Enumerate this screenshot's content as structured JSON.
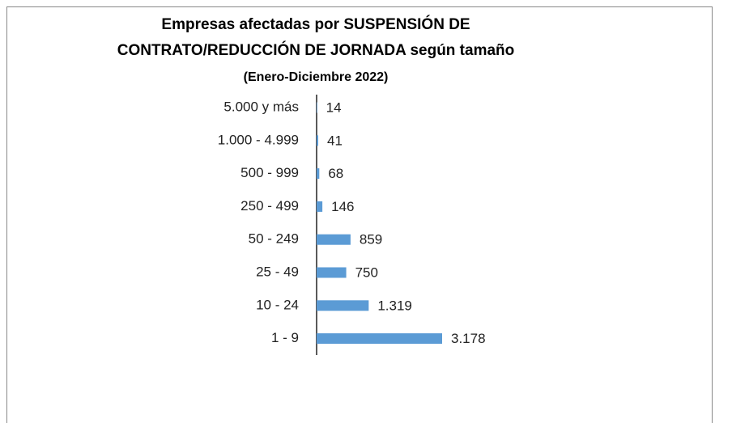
{
  "chart_data": {
    "type": "bar",
    "orientation": "horizontal",
    "title": [
      "Empresas afectadas por SUSPENSIÓN DE",
      "CONTRATO/REDUCCIÓN DE JORNADA según tamaño"
    ],
    "subtitle": "(Enero-Diciembre 2022)",
    "categories": [
      "5.000 y más",
      "1.000 - 4.999",
      "500 - 999",
      "250 - 499",
      "50 - 249",
      "25 - 49",
      "10 - 24",
      "1 - 9"
    ],
    "values": [
      14,
      41,
      68,
      146,
      859,
      750,
      1319,
      3178
    ],
    "value_labels": [
      "14",
      "41",
      "68",
      "146",
      "859",
      "750",
      "1.319",
      "3.178"
    ],
    "color": "#5b9bd5"
  }
}
